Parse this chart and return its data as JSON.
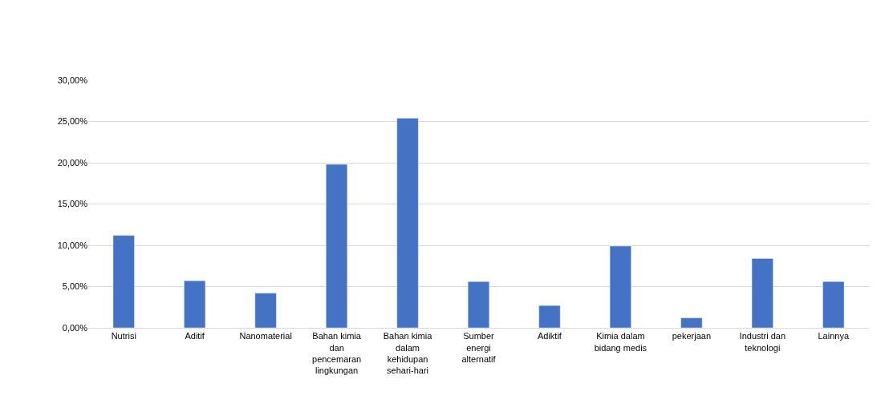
{
  "chart_data": {
    "type": "bar",
    "categories": [
      "Nutrisi",
      "Aditif",
      "Nanomaterial",
      "Bahan kimia dan pencemaran lingkungan",
      "Bahan kimia dalam kehidupan sehari-hari",
      "Sumber energi alternatif",
      "Adiktif",
      "Kimia dalam bidang medis",
      "pekerjaan",
      "Industri dan teknologi",
      "Lainnya"
    ],
    "values": [
      11.2,
      5.7,
      4.2,
      19.8,
      25.4,
      5.6,
      2.7,
      9.9,
      1.2,
      8.4,
      5.6
    ],
    "color": "#4472c4",
    "ylim": [
      0,
      30
    ],
    "yticks": [
      {
        "value": 0,
        "label": "0,00%"
      },
      {
        "value": 5,
        "label": "5,00%"
      },
      {
        "value": 10,
        "label": "10,00%"
      },
      {
        "value": 15,
        "label": "15,00%"
      },
      {
        "value": 20,
        "label": "20,00%"
      },
      {
        "value": 25,
        "label": "25,00%"
      },
      {
        "value": 30,
        "label": "30,00%"
      }
    ],
    "grid": "y",
    "legend": false
  }
}
